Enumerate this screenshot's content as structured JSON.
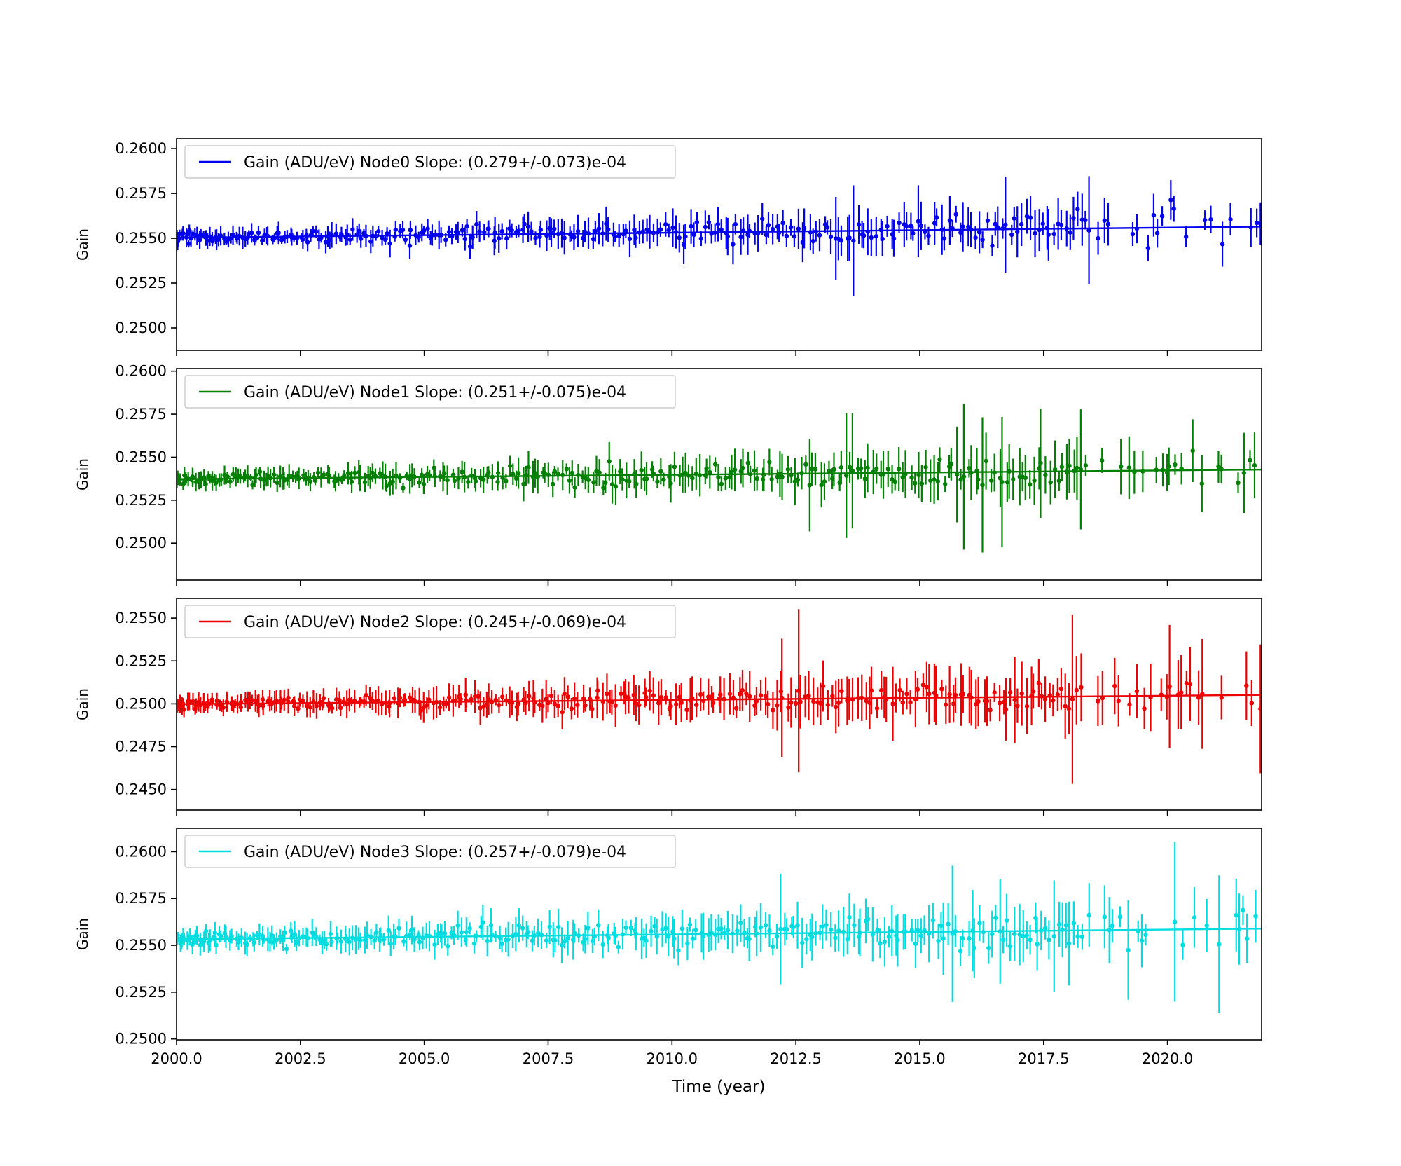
{
  "figure": {
    "background": "#ffffff",
    "xlabel": "Time (year)",
    "ylabel": "Gain"
  },
  "chart_data": {
    "type": "scatter",
    "subtype": "errorbar-scatter-with-linear-fit",
    "title": "",
    "xlabel": "Time (year)",
    "ylabel": "Gain",
    "grid": false,
    "legend_position": "upper left",
    "x_range": [
      2000.0,
      2021.9
    ],
    "xticks": {
      "values": [
        2000.0,
        2002.5,
        2005.0,
        2007.5,
        2010.0,
        2012.5,
        2015.0,
        2017.5,
        2020.0
      ],
      "labels": [
        "2000.0",
        "2002.5",
        "2005.0",
        "2007.5",
        "2010.0",
        "2012.5",
        "2015.0",
        "2017.5",
        "2020.0"
      ]
    },
    "panels": [
      {
        "name": "Node0",
        "color": "#0000ee",
        "legend": "Gain (ADU/eV) Node0 Slope: (0.279+/-0.073)e-04",
        "slope_value": "0.279e-04",
        "slope_error": "0.073e-04",
        "ylim": [
          0.24875,
          0.26055
        ],
        "yticks": {
          "values": [
            0.26,
            0.2575,
            0.255,
            0.2525,
            0.25
          ],
          "labels": [
            "0.2600",
            "0.2575",
            "0.2550",
            "0.2525",
            "0.2500"
          ]
        },
        "fit_line": {
          "x": [
            2000.0,
            2021.9
          ],
          "y": [
            0.25503,
            0.25565
          ]
        },
        "points_model": {
          "seed": 101,
          "n": 330,
          "intercept": 0.25505,
          "slope_per_year": 2.79e-05,
          "sigma0": 0.00015,
          "sigma1": 0.00052,
          "err0": 0.00035,
          "err1": 0.00115,
          "spike_p": 0.07,
          "spike_mult": 2.6
        }
      },
      {
        "name": "Node1",
        "color": "#008000",
        "legend": "Gain (ADU/eV) Node1 Slope: (0.251+/-0.075)e-04",
        "slope_value": "0.251e-04",
        "slope_error": "0.075e-04",
        "ylim": [
          0.24785,
          0.26015
        ],
        "yticks": {
          "values": [
            0.26,
            0.2575,
            0.255,
            0.2525,
            0.25
          ],
          "labels": [
            "0.2600",
            "0.2575",
            "0.2550",
            "0.2525",
            "0.2500"
          ]
        },
        "fit_line": {
          "x": [
            2000.0,
            2021.9
          ],
          "y": [
            0.25372,
            0.25428
          ]
        },
        "points_model": {
          "seed": 202,
          "n": 330,
          "intercept": 0.25372,
          "slope_per_year": 2.51e-05,
          "sigma0": 0.00013,
          "sigma1": 0.00055,
          "err0": 0.00035,
          "err1": 0.0013,
          "spike_p": 0.08,
          "spike_mult": 2.8
        }
      },
      {
        "name": "Node2",
        "color": "#ee0000",
        "legend": "Gain (ADU/eV) Node2 Slope: (0.245+/-0.069)e-04",
        "slope_value": "0.245e-04",
        "slope_error": "0.069e-04",
        "ylim": [
          0.2438,
          0.25615
        ],
        "yticks": {
          "values": [
            0.255,
            0.2525,
            0.25,
            0.2475,
            0.245
          ],
          "labels": [
            "0.2550",
            "0.2525",
            "0.2500",
            "0.2475",
            "0.2450"
          ]
        },
        "fit_line": {
          "x": [
            2000.0,
            2021.9
          ],
          "y": [
            0.24998,
            0.25052
          ]
        },
        "points_model": {
          "seed": 303,
          "n": 330,
          "intercept": 0.24998,
          "slope_per_year": 2.45e-05,
          "sigma0": 0.00013,
          "sigma1": 0.0005,
          "err0": 0.00035,
          "err1": 0.0015,
          "spike_p": 0.08,
          "spike_mult": 3.2
        }
      },
      {
        "name": "Node3",
        "color": "#00dde0",
        "legend": "Gain (ADU/eV) Node3 Slope: (0.257+/-0.079)e-04",
        "slope_value": "0.257e-04",
        "slope_error": "0.079e-04",
        "ylim": [
          0.24995,
          0.26125
        ],
        "yticks": {
          "values": [
            0.26,
            0.2575,
            0.255,
            0.2525,
            0.25
          ],
          "labels": [
            "0.2600",
            "0.2575",
            "0.2550",
            "0.2525",
            "0.2500"
          ]
        },
        "fit_line": {
          "x": [
            2000.0,
            2021.9
          ],
          "y": [
            0.25532,
            0.25589
          ]
        },
        "points_model": {
          "seed": 404,
          "n": 330,
          "intercept": 0.25532,
          "slope_per_year": 2.57e-05,
          "sigma0": 0.00015,
          "sigma1": 0.00058,
          "err0": 0.00035,
          "err1": 0.0013,
          "spike_p": 0.07,
          "spike_mult": 2.6
        }
      }
    ]
  }
}
